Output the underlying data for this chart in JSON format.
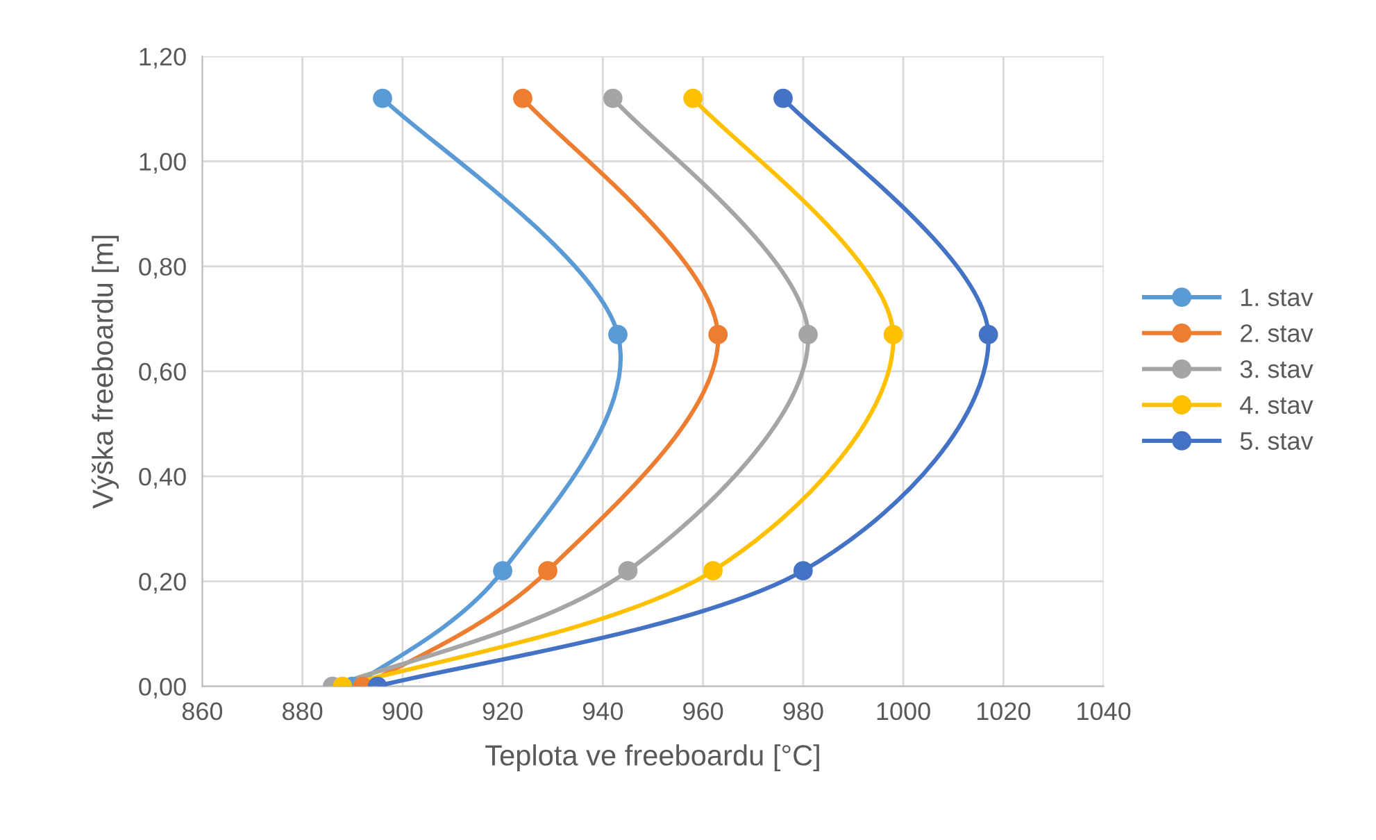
{
  "chart_data": {
    "type": "line",
    "xlabel": "Teplota ve freeboardu [°C]",
    "ylabel": "Výška freeboardu [m]",
    "xlim": [
      860,
      1040
    ],
    "xticks": [
      860,
      880,
      900,
      920,
      940,
      960,
      980,
      1000,
      1020,
      1040
    ],
    "ylim": [
      0,
      1.2
    ],
    "yticks": [
      {
        "value": 0,
        "label": "0,00"
      },
      {
        "value": 0.2,
        "label": "0,20"
      },
      {
        "value": 0.4,
        "label": "0,40"
      },
      {
        "value": 0.6,
        "label": "0,60"
      },
      {
        "value": 0.8,
        "label": "0,80"
      },
      {
        "value": 1.0,
        "label": "1,00"
      },
      {
        "value": 1.2,
        "label": "1,20"
      }
    ],
    "grid": true,
    "legend": "right",
    "marker": "circle",
    "line_style": "solid",
    "series": [
      {
        "name": "1. stav",
        "color": "#5b9bd5",
        "x": [
          896,
          943,
          920,
          890
        ],
        "values": [
          1.12,
          0.67,
          0.22,
          0.0
        ]
      },
      {
        "name": "2. stav",
        "color": "#ed7d31",
        "x": [
          924,
          963,
          929,
          892
        ],
        "values": [
          1.12,
          0.67,
          0.22,
          0.0
        ]
      },
      {
        "name": "3. stav",
        "color": "#a5a5a5",
        "x": [
          942,
          981,
          945,
          886
        ],
        "values": [
          1.12,
          0.67,
          0.22,
          0.0
        ]
      },
      {
        "name": "4. stav",
        "color": "#ffc000",
        "x": [
          958,
          998,
          962,
          888
        ],
        "values": [
          1.12,
          0.67,
          0.22,
          0.0
        ]
      },
      {
        "name": "5. stav",
        "color": "#4472c4",
        "x": [
          976,
          1017,
          980,
          895
        ],
        "values": [
          1.12,
          0.67,
          0.22,
          0.0
        ]
      }
    ]
  }
}
